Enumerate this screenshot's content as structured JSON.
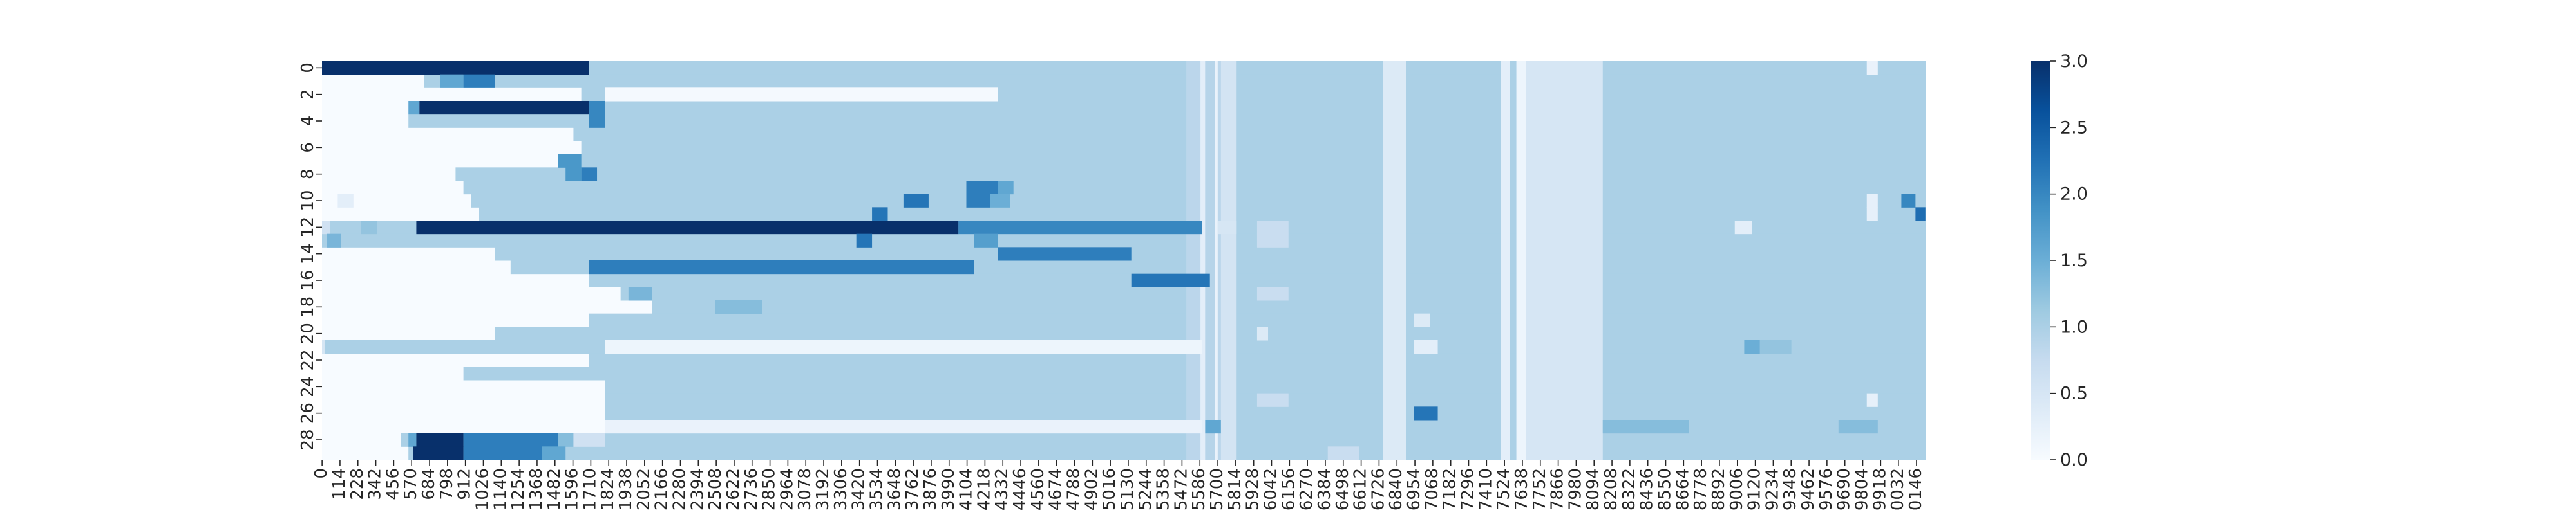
{
  "chart_data": {
    "type": "heatmap",
    "title": "",
    "xlabel": "",
    "ylabel": "",
    "colormap": "Blues",
    "colorbar": {
      "vmin": 0.0,
      "vmax": 3.0,
      "ticks": [
        "0.0",
        "0.5",
        "1.0",
        "1.5",
        "2.0",
        "2.5",
        "3.0"
      ]
    },
    "x_index_range": [
      0,
      10203
    ],
    "x_tick_step": 114,
    "x_tick_labels": [
      "0",
      "114",
      "228",
      "342",
      "456",
      "570",
      "684",
      "798",
      "912",
      "1026",
      "1140",
      "1254",
      "1368",
      "1482",
      "1596",
      "1710",
      "1824",
      "1938",
      "2052",
      "2166",
      "2280",
      "2394",
      "2508",
      "2622",
      "2736",
      "2850",
      "2964",
      "3078",
      "3192",
      "3306",
      "3420",
      "3534",
      "3648",
      "3762",
      "3876",
      "3990",
      "4104",
      "4218",
      "4332",
      "4446",
      "4560",
      "4674",
      "4788",
      "4902",
      "5016",
      "5130",
      "5244",
      "5358",
      "5472",
      "5586",
      "5700",
      "5814",
      "5928",
      "6042",
      "6156",
      "6270",
      "6384",
      "6498",
      "6612",
      "6726",
      "6840",
      "6954",
      "7068",
      "7182",
      "7296",
      "7410",
      "7524",
      "7638",
      "7752",
      "7866",
      "7980",
      "8094",
      "8208",
      "8322",
      "8436",
      "8550",
      "8664",
      "8778",
      "8892",
      "9006",
      "9120",
      "9234",
      "9348",
      "9462",
      "9576",
      "9690",
      "9804",
      "9918",
      "0032",
      "0146"
    ],
    "y_index_range": [
      0,
      29
    ],
    "y_tick_labels": [
      "0",
      "2",
      "4",
      "6",
      "8",
      "10",
      "12",
      "14",
      "16",
      "18",
      "20",
      "22",
      "24",
      "26",
      "28"
    ],
    "default_value": 1.0,
    "row_starts": [
      0,
      650,
      1650,
      1800,
      550,
      1600,
      1650,
      1600,
      850,
      900,
      950,
      1000,
      0,
      0,
      1100,
      1200,
      1700,
      1900,
      2100,
      1700,
      1100,
      0,
      1700,
      900,
      1800,
      1800,
      1800,
      1800,
      500,
      550
    ],
    "column_bands": [
      {
        "x": [
          5500,
          5590
        ],
        "v": 0.85
      },
      {
        "x": [
          5590,
          5620
        ],
        "v": 0.3
      },
      {
        "x": [
          5620,
          5680
        ],
        "v": 0.9
      },
      {
        "x": [
          5680,
          5700
        ],
        "v": 0.2
      },
      {
        "x": [
          5700,
          5720
        ],
        "v": 0.85
      },
      {
        "x": [
          5720,
          5820
        ],
        "v": 0.55
      },
      {
        "x": [
          6750,
          6900
        ],
        "v": 0.4
      },
      {
        "x": [
          7500,
          7560
        ],
        "v": 0.3
      },
      {
        "x": [
          7600,
          7660
        ],
        "v": 0.15
      },
      {
        "x": [
          7660,
          8150
        ],
        "v": 0.5
      }
    ],
    "segments": [
      {
        "row": 0,
        "x": [
          0,
          1700
        ],
        "v": 3.0
      },
      {
        "row": 0,
        "x": [
          9830,
          9900
        ],
        "v": 0.2
      },
      {
        "row": 1,
        "x": [
          750,
          900
        ],
        "v": 1.6
      },
      {
        "row": 1,
        "x": [
          900,
          1100
        ],
        "v": 2.1
      },
      {
        "row": 2,
        "x": [
          1800,
          4300
        ],
        "v": 0.05
      },
      {
        "row": 3,
        "x": [
          550,
          620
        ],
        "v": 1.6
      },
      {
        "row": 3,
        "x": [
          620,
          1700
        ],
        "v": 3.0
      },
      {
        "row": 3,
        "x": [
          1700,
          1800
        ],
        "v": 2.0
      },
      {
        "row": 4,
        "x": [
          1700,
          1800
        ],
        "v": 2.0
      },
      {
        "row": 7,
        "x": [
          1500,
          1650
        ],
        "v": 1.8
      },
      {
        "row": 8,
        "x": [
          1550,
          1650
        ],
        "v": 1.8
      },
      {
        "row": 8,
        "x": [
          1650,
          1750
        ],
        "v": 2.1
      },
      {
        "row": 9,
        "x": [
          4100,
          4300
        ],
        "v": 2.1
      },
      {
        "row": 9,
        "x": [
          4300,
          4400
        ],
        "v": 1.6
      },
      {
        "row": 10,
        "x": [
          100,
          200
        ],
        "v": 0.3
      },
      {
        "row": 10,
        "x": [
          3700,
          3860
        ],
        "v": 2.2
      },
      {
        "row": 10,
        "x": [
          4100,
          4250
        ],
        "v": 2.1
      },
      {
        "row": 10,
        "x": [
          4250,
          4380
        ],
        "v": 1.5
      },
      {
        "row": 10,
        "x": [
          9830,
          9900
        ],
        "v": 0.25
      },
      {
        "row": 10,
        "x": [
          10050,
          10140
        ],
        "v": 2.0
      },
      {
        "row": 11,
        "x": [
          3500,
          3600
        ],
        "v": 2.2
      },
      {
        "row": 11,
        "x": [
          9830,
          9900
        ],
        "v": 0.25
      },
      {
        "row": 11,
        "x": [
          10140,
          10203
        ],
        "v": 2.3
      },
      {
        "row": 12,
        "x": [
          0,
          50
        ],
        "v": 0.6
      },
      {
        "row": 12,
        "x": [
          250,
          350
        ],
        "v": 1.2
      },
      {
        "row": 12,
        "x": [
          600,
          4050
        ],
        "v": 3.0
      },
      {
        "row": 12,
        "x": [
          4050,
          5600
        ],
        "v": 2.0
      },
      {
        "row": 12,
        "x": [
          5700,
          5820
        ],
        "v": 0.5
      },
      {
        "row": 12,
        "x": [
          5950,
          6150
        ],
        "v": 0.7
      },
      {
        "row": 12,
        "x": [
          8990,
          9100
        ],
        "v": 0.3
      },
      {
        "row": 13,
        "x": [
          30,
          120
        ],
        "v": 1.4
      },
      {
        "row": 13,
        "x": [
          3400,
          3500
        ],
        "v": 2.2
      },
      {
        "row": 13,
        "x": [
          4150,
          4300
        ],
        "v": 1.7
      },
      {
        "row": 13,
        "x": [
          5950,
          6150
        ],
        "v": 0.7
      },
      {
        "row": 14,
        "x": [
          4300,
          5150
        ],
        "v": 2.1
      },
      {
        "row": 15,
        "x": [
          1700,
          4150
        ],
        "v": 2.1
      },
      {
        "row": 16,
        "x": [
          5150,
          5650
        ],
        "v": 2.2
      },
      {
        "row": 17,
        "x": [
          1950,
          2100
        ],
        "v": 1.4
      },
      {
        "row": 17,
        "x": [
          5950,
          6150
        ],
        "v": 0.7
      },
      {
        "row": 18,
        "x": [
          2500,
          2800
        ],
        "v": 1.3
      },
      {
        "row": 19,
        "x": [
          6950,
          7050
        ],
        "v": 0.4
      },
      {
        "row": 20,
        "x": [
          5950,
          6020
        ],
        "v": 0.4
      },
      {
        "row": 21,
        "x": [
          0,
          20
        ],
        "v": 0.5
      },
      {
        "row": 21,
        "x": [
          1800,
          5600
        ],
        "v": 0.15
      },
      {
        "row": 21,
        "x": [
          6950,
          7100
        ],
        "v": 0.3
      },
      {
        "row": 21,
        "x": [
          9050,
          9150
        ],
        "v": 1.5
      },
      {
        "row": 21,
        "x": [
          9150,
          9350
        ],
        "v": 1.2
      },
      {
        "row": 25,
        "x": [
          5950,
          6150
        ],
        "v": 0.7
      },
      {
        "row": 25,
        "x": [
          9830,
          9900
        ],
        "v": 0.25
      },
      {
        "row": 26,
        "x": [
          6950,
          7100
        ],
        "v": 2.2
      },
      {
        "row": 27,
        "x": [
          1800,
          5600
        ],
        "v": 0.2
      },
      {
        "row": 27,
        "x": [
          5620,
          5720
        ],
        "v": 1.6
      },
      {
        "row": 27,
        "x": [
          8150,
          8700
        ],
        "v": 1.3
      },
      {
        "row": 27,
        "x": [
          9650,
          9900
        ],
        "v": 1.3
      },
      {
        "row": 28,
        "x": [
          550,
          600
        ],
        "v": 1.6
      },
      {
        "row": 28,
        "x": [
          600,
          900
        ],
        "v": 3.0
      },
      {
        "row": 28,
        "x": [
          900,
          1500
        ],
        "v": 2.1
      },
      {
        "row": 28,
        "x": [
          1500,
          1600
        ],
        "v": 1.3
      },
      {
        "row": 28,
        "x": [
          1600,
          1800
        ],
        "v": 0.6
      },
      {
        "row": 29,
        "x": [
          580,
          900
        ],
        "v": 3.0
      },
      {
        "row": 29,
        "x": [
          900,
          1400
        ],
        "v": 2.1
      },
      {
        "row": 29,
        "x": [
          1400,
          1550
        ],
        "v": 1.6
      },
      {
        "row": 29,
        "x": [
          6400,
          6600
        ],
        "v": 0.7
      }
    ]
  }
}
